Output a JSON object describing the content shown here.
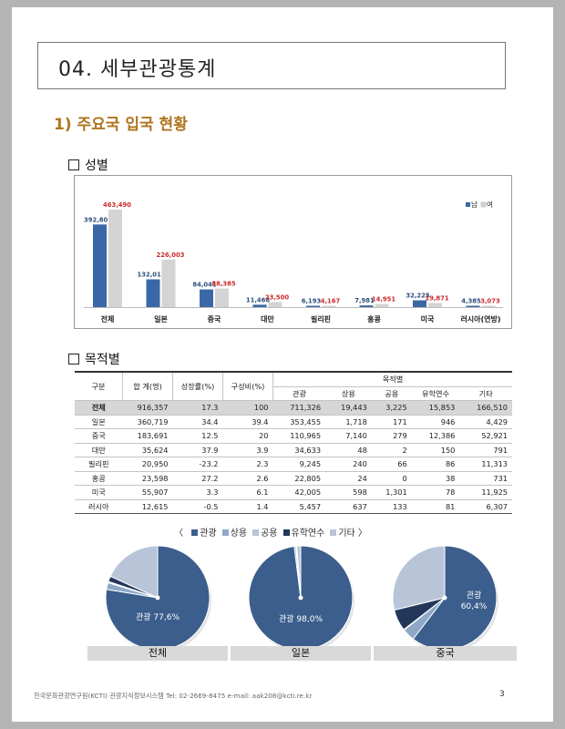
{
  "title": "04. 세부관광통계",
  "subheading": "1) 주요국 입국 현황",
  "section_gender": "성별",
  "section_purpose": "목적별",
  "chart_data": [
    {
      "type": "bar",
      "categories": [
        "전체",
        "일본",
        "중국",
        "대만",
        "필리핀",
        "홍콩",
        "미국",
        "러시아(연방)"
      ],
      "series": [
        {
          "name": "남",
          "values": [
            392801,
            132012,
            84041,
            11468,
            6193,
            7981,
            32225,
            4385
          ],
          "labels": [
            "392,801",
            "132,012",
            "84,041",
            "11,468",
            "6,193",
            "7,981",
            "32,225",
            "4,385"
          ],
          "color": "#3a68a6"
        },
        {
          "name": "여",
          "values": [
            463490,
            226003,
            88385,
            23500,
            4167,
            14951,
            19871,
            3073
          ],
          "labels": [
            "463,490",
            "226,003",
            "88,385",
            "23,500",
            "4,167",
            "14,951",
            "19,871",
            "3,073"
          ],
          "color": "#d4d4d4"
        }
      ],
      "ylim": [
        0,
        520000
      ],
      "legend": "top-right"
    },
    {
      "type": "pie",
      "caption": "전체",
      "categories": [
        "관광",
        "상용",
        "공용",
        "유학연수",
        "기타"
      ],
      "values": [
        77.6,
        2.1,
        0.4,
        1.7,
        18.2
      ],
      "label": "관광 77,6%"
    },
    {
      "type": "pie",
      "caption": "일본",
      "categories": [
        "관광",
        "상용",
        "공용",
        "유학연수",
        "기타"
      ],
      "values": [
        98.0,
        0.5,
        0.05,
        0.25,
        1.2
      ],
      "label": "관광 98,0%"
    },
    {
      "type": "pie",
      "caption": "중국",
      "categories": [
        "관광",
        "상용",
        "공용",
        "유학연수",
        "기타"
      ],
      "values": [
        60.4,
        3.9,
        0.2,
        6.7,
        28.8
      ],
      "label": "관광\n60,4%"
    }
  ],
  "pie_colors": [
    "#3b5e8c",
    "#8fa8c8",
    "#b9c4d6",
    "#22375a",
    "#b8c4d8"
  ],
  "pie_legend_open": "〈",
  "pie_legend_close": "〉",
  "table": {
    "h_group": "구분",
    "h_total": "합 계(명)",
    "h_growth": "성장률(%)",
    "h_share": "구성비(%)",
    "h_purpose": "목적별",
    "h_cols": [
      "관광",
      "상용",
      "공용",
      "유학연수",
      "기타"
    ],
    "rows": [
      [
        "전체",
        "916,357",
        "17.3",
        "100",
        "711,326",
        "19,443",
        "3,225",
        "15,853",
        "166,510"
      ],
      [
        "일본",
        "360,719",
        "34.4",
        "39.4",
        "353,455",
        "1,718",
        "171",
        "946",
        "4,429"
      ],
      [
        "중국",
        "183,691",
        "12.5",
        "20",
        "110,965",
        "7,140",
        "279",
        "12,386",
        "52,921"
      ],
      [
        "대만",
        "35,624",
        "37.9",
        "3.9",
        "34,633",
        "48",
        "2",
        "150",
        "791"
      ],
      [
        "필리핀",
        "20,950",
        "-23.2",
        "2.3",
        "9,245",
        "240",
        "66",
        "86",
        "11,313"
      ],
      [
        "홍콩",
        "23,598",
        "27.2",
        "2.6",
        "22,805",
        "24",
        "0",
        "38",
        "731"
      ],
      [
        "미국",
        "55,907",
        "3.3",
        "6.1",
        "42,005",
        "598",
        "1,301",
        "78",
        "11,925"
      ],
      [
        "러시아",
        "12,615",
        "-0.5",
        "1.4",
        "5,457",
        "637",
        "133",
        "81",
        "6,307"
      ]
    ]
  },
  "footer": "한국문화관광연구원(KCTI) 관광지식정보시스템   Tel: 02-2669-8475  e-mail: aak208@kcti.re.kr",
  "page_number": "3"
}
